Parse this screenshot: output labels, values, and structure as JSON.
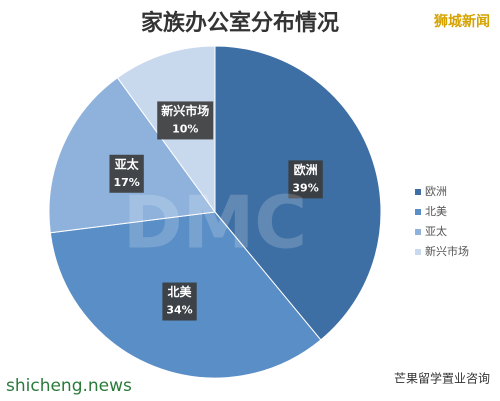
{
  "chart_data": {
    "type": "pie",
    "title": "家族办公室分布情况",
    "categories": [
      "欧洲",
      "北美",
      "亚太",
      "新兴市场"
    ],
    "values": [
      39,
      34,
      17,
      10
    ],
    "value_labels": [
      "39%",
      "34%",
      "17%",
      "10%"
    ],
    "colors": [
      "#3e6fa4",
      "#5a8ec6",
      "#8eb2dc",
      "#c8d9ee"
    ],
    "legend": "right",
    "watermarks": [
      "狮城新闻",
      "shicheng.news",
      "芒果留学置业咨询",
      "DMC"
    ]
  }
}
